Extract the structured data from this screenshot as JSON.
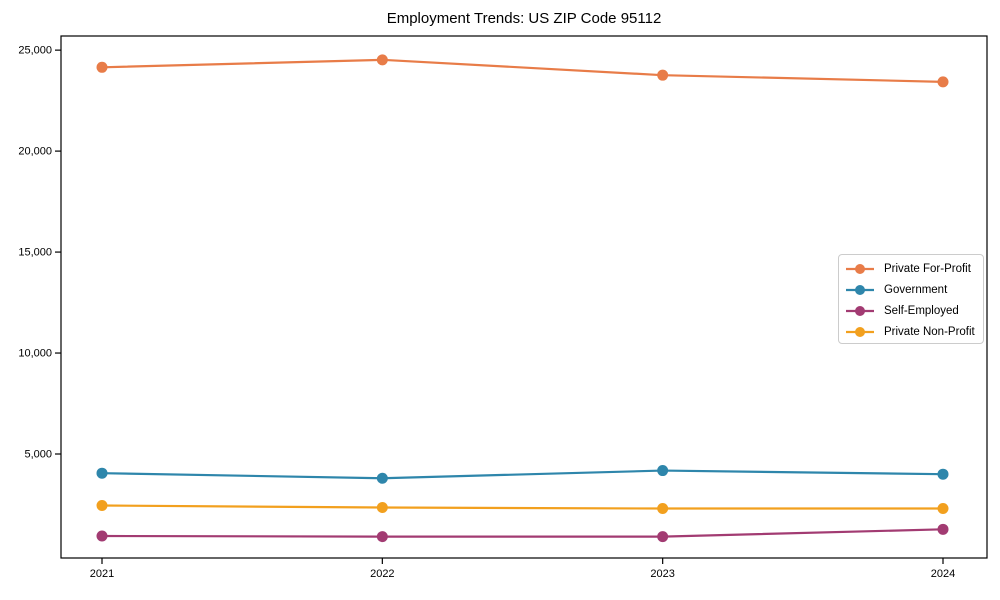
{
  "chart_data": {
    "type": "line",
    "title": "Employment Trends: US ZIP Code 95112",
    "xlabel": "",
    "ylabel": "",
    "categories": [
      "2021",
      "2022",
      "2023",
      "2024"
    ],
    "x": [
      2021,
      2022,
      2023,
      2024
    ],
    "series": [
      {
        "name": "Private For-Profit",
        "color": "#E87C48",
        "values": [
          24150,
          24520,
          23760,
          23430
        ]
      },
      {
        "name": "Government",
        "color": "#2E86AB",
        "values": [
          4050,
          3800,
          4180,
          4000
        ]
      },
      {
        "name": "Self-Employed",
        "color": "#A23B72",
        "values": [
          940,
          910,
          910,
          1270
        ]
      },
      {
        "name": "Private Non-Profit",
        "color": "#F2A01E",
        "values": [
          2450,
          2350,
          2300,
          2300
        ]
      }
    ],
    "y_ticks": [
      {
        "value": 5000,
        "label": "5,000"
      },
      {
        "value": 10000,
        "label": "10,000"
      },
      {
        "value": 15000,
        "label": "15,000"
      },
      {
        "value": 20000,
        "label": "20,000"
      },
      {
        "value": 25000,
        "label": "25,000"
      }
    ],
    "ylim": [
      -150,
      25700
    ],
    "grid": false,
    "marker": "circle",
    "legend_position": "center right",
    "axis_color": "#000000"
  }
}
